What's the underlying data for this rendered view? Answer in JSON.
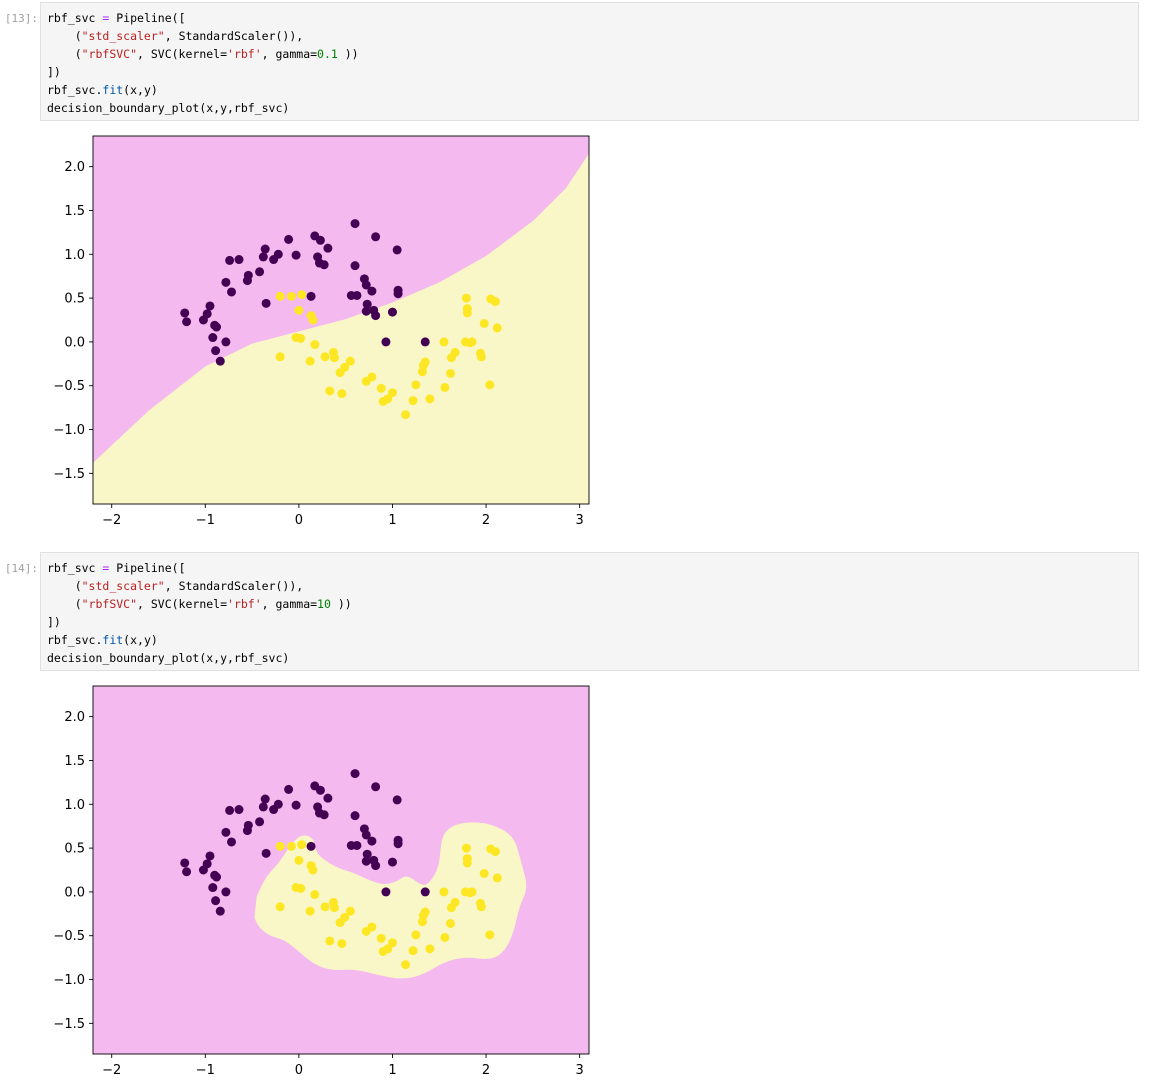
{
  "cells": [
    {
      "prompt": "[13]:",
      "code": [
        [
          "rbf_svc ",
          "=",
          " Pipeline(["
        ],
        [
          "    (",
          "\"std_scaler\"",
          ", StandardScaler()),"
        ],
        [
          "    (",
          "\"rbfSVC\"",
          ", SVC(kernel=",
          "'rbf'",
          ", gamma=",
          "0.1",
          " ))"
        ],
        [
          "])"
        ],
        [
          "rbf_svc.",
          "fit",
          "(x,y)"
        ],
        [
          "decision_boundary_plot(x,y,rbf_svc)"
        ]
      ],
      "gamma": 0.1
    },
    {
      "prompt": "[14]:",
      "code": [
        [
          "rbf_svc ",
          "=",
          " Pipeline(["
        ],
        [
          "    (",
          "\"std_scaler\"",
          ", StandardScaler()),"
        ],
        [
          "    (",
          "\"rbfSVC\"",
          ", SVC(kernel=",
          "'rbf'",
          ", gamma=",
          "10",
          " ))"
        ],
        [
          "])"
        ],
        [
          "rbf_svc.",
          "fit",
          "(x,y)"
        ],
        [
          "decision_boundary_plot(x,y,rbf_svc)"
        ]
      ],
      "gamma": 10
    }
  ],
  "chart_data": [
    {
      "type": "scatter",
      "title": "",
      "xlabel": "",
      "ylabel": "",
      "xlim": [
        -2.2,
        3.1
      ],
      "ylim": [
        -1.85,
        2.35
      ],
      "xticks": [
        "−2",
        "−1",
        "0",
        "1",
        "2",
        "3"
      ],
      "yticks": [
        "−1.5",
        "−1.0",
        "−0.5",
        "0.0",
        "0.5",
        "1.0",
        "1.5",
        "2.0"
      ],
      "region_colors": {
        "class0": "#f4b9ee",
        "class1": "#f9f7c8"
      },
      "point_colors": {
        "class0": "#440154",
        "class1": "#fde725"
      },
      "boundary": "smooth curve separating upper-left (class 0) from lower-right (class 1)",
      "class0_points": [
        [
          -1.22,
          0.33
        ],
        [
          -1.2,
          0.23
        ],
        [
          -1.02,
          0.25
        ],
        [
          -0.98,
          0.32
        ],
        [
          -0.95,
          0.41
        ],
        [
          -0.9,
          0.19
        ],
        [
          -0.92,
          0.05
        ],
        [
          -0.89,
          -0.1
        ],
        [
          -0.84,
          -0.22
        ],
        [
          -0.78,
          0.0
        ],
        [
          -0.88,
          0.17
        ],
        [
          -0.78,
          0.68
        ],
        [
          -0.72,
          0.57
        ],
        [
          -0.74,
          0.93
        ],
        [
          -0.64,
          0.94
        ],
        [
          -0.55,
          0.7
        ],
        [
          -0.54,
          0.76
        ],
        [
          -0.42,
          0.8
        ],
        [
          -0.38,
          0.97
        ],
        [
          -0.36,
          1.06
        ],
        [
          -0.27,
          0.94
        ],
        [
          -0.22,
          1.0
        ],
        [
          -0.11,
          1.17
        ],
        [
          -0.03,
          0.99
        ],
        [
          0.17,
          1.21
        ],
        [
          0.23,
          1.16
        ],
        [
          0.31,
          1.07
        ],
        [
          0.2,
          0.97
        ],
        [
          0.22,
          0.9
        ],
        [
          0.27,
          0.88
        ],
        [
          0.6,
          1.35
        ],
        [
          0.82,
          1.2
        ],
        [
          1.05,
          1.05
        ],
        [
          0.6,
          0.87
        ],
        [
          0.7,
          0.72
        ],
        [
          0.72,
          0.65
        ],
        [
          0.78,
          0.58
        ],
        [
          0.56,
          0.53
        ],
        [
          0.62,
          0.53
        ],
        [
          0.73,
          0.43
        ],
        [
          0.72,
          0.35
        ],
        [
          0.82,
          0.3
        ],
        [
          0.8,
          0.36
        ],
        [
          0.93,
          0.0
        ],
        [
          1.0,
          0.34
        ],
        [
          1.06,
          0.59
        ],
        [
          1.06,
          0.55
        ],
        [
          0.13,
          0.52
        ],
        [
          -0.35,
          0.44
        ],
        [
          1.35,
          0.0
        ]
      ],
      "class1_points": [
        [
          -0.2,
          0.52
        ],
        [
          -0.08,
          0.52
        ],
        [
          0.03,
          0.54
        ],
        [
          -0.03,
          0.05
        ],
        [
          0.02,
          0.04
        ],
        [
          0.13,
          0.3
        ],
        [
          0.15,
          0.25
        ],
        [
          0.0,
          0.36
        ],
        [
          0.17,
          -0.03
        ],
        [
          -0.2,
          -0.17
        ],
        [
          0.12,
          -0.22
        ],
        [
          0.28,
          -0.17
        ],
        [
          0.37,
          -0.12
        ],
        [
          0.38,
          -0.18
        ],
        [
          0.44,
          -0.35
        ],
        [
          0.49,
          -0.29
        ],
        [
          0.55,
          -0.22
        ],
        [
          0.33,
          -0.56
        ],
        [
          0.46,
          -0.59
        ],
        [
          0.72,
          -0.45
        ],
        [
          0.78,
          -0.4
        ],
        [
          0.88,
          -0.53
        ],
        [
          0.9,
          -0.68
        ],
        [
          0.95,
          -0.65
        ],
        [
          1.0,
          -0.58
        ],
        [
          1.14,
          -0.83
        ],
        [
          1.22,
          -0.67
        ],
        [
          1.25,
          -0.49
        ],
        [
          1.32,
          -0.34
        ],
        [
          1.33,
          -0.27
        ],
        [
          1.35,
          -0.23
        ],
        [
          1.4,
          -0.65
        ],
        [
          1.56,
          -0.52
        ],
        [
          1.62,
          -0.36
        ],
        [
          1.63,
          -0.18
        ],
        [
          1.67,
          -0.12
        ],
        [
          1.55,
          0.0
        ],
        [
          1.78,
          0.0
        ],
        [
          1.85,
          0.0
        ],
        [
          1.79,
          0.5
        ],
        [
          1.8,
          0.38
        ],
        [
          1.8,
          0.33
        ],
        [
          1.98,
          0.21
        ],
        [
          2.05,
          0.49
        ],
        [
          2.1,
          0.46
        ],
        [
          2.12,
          0.16
        ],
        [
          1.94,
          -0.13
        ],
        [
          1.95,
          -0.17
        ],
        [
          2.04,
          -0.49
        ],
        [
          1.83,
          -0.01
        ]
      ]
    },
    {
      "type": "scatter",
      "title": "",
      "xlabel": "",
      "ylabel": "",
      "xlim": [
        -2.2,
        3.1
      ],
      "ylim": [
        -1.85,
        2.35
      ],
      "xticks": [
        "−2",
        "−1",
        "0",
        "1",
        "2",
        "3"
      ],
      "yticks": [
        "−1.5",
        "−1.0",
        "−0.5",
        "0.0",
        "0.5",
        "1.0",
        "1.5",
        "2.0"
      ],
      "region_colors": {
        "class0": "#f4b9ee",
        "class1": "#f9f7c8"
      },
      "point_colors": {
        "class0": "#440154",
        "class1": "#fde725"
      },
      "boundary": "tight blob around lower moon (class 1) region, rest class 0",
      "class0_points": "same as chart 1",
      "class1_points": "same as chart 1"
    }
  ]
}
